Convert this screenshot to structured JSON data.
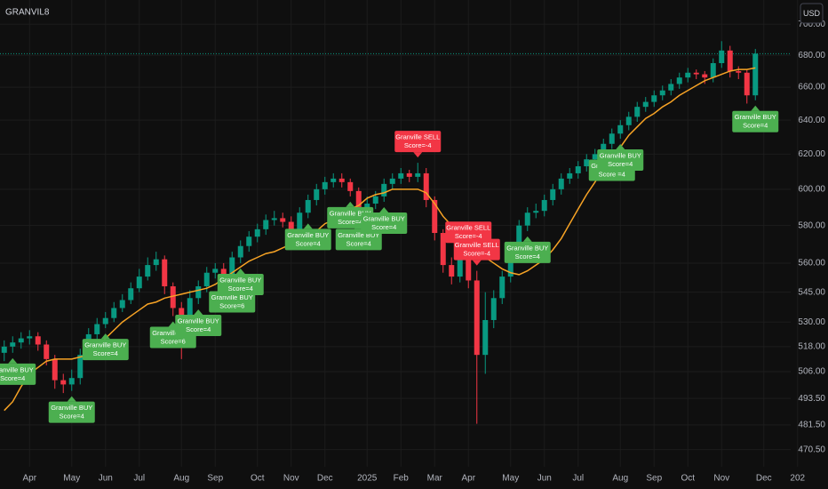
{
  "chart_data": {
    "type": "candlestick",
    "title": "GRANVIL8",
    "currency": "USD",
    "categories": [
      null,
      null,
      null,
      "Apr",
      null,
      null,
      null,
      null,
      "May",
      null,
      null,
      null,
      "Jun",
      null,
      null,
      null,
      "Jul",
      null,
      null,
      null,
      null,
      "Aug",
      null,
      null,
      null,
      "Sep",
      null,
      null,
      null,
      null,
      "Oct",
      null,
      null,
      null,
      "Nov",
      null,
      null,
      null,
      "Dec",
      null,
      null,
      null,
      null,
      "2025",
      null,
      null,
      null,
      "Feb",
      null,
      null,
      null,
      "Mar",
      null,
      null,
      null,
      "Apr",
      null,
      null,
      null,
      null,
      "May",
      null,
      null,
      null,
      "Jun",
      null,
      null,
      null,
      "Jul",
      null,
      null,
      null,
      null,
      "Aug",
      null,
      null,
      null,
      "Sep",
      null,
      null,
      null,
      "Oct",
      null,
      null,
      null,
      "Nov",
      null,
      null,
      null,
      null,
      "Dec",
      null,
      null,
      null,
      "202"
    ],
    "open": [
      515,
      518,
      520,
      522,
      523,
      519,
      512,
      502,
      500,
      503,
      514,
      524,
      529,
      532,
      537,
      541,
      547,
      553,
      559,
      562,
      548,
      537,
      522,
      542,
      548,
      555,
      557,
      553,
      563,
      569,
      574,
      578,
      583,
      584,
      582,
      577,
      587,
      594,
      600,
      604,
      606,
      604,
      599,
      588,
      592,
      596,
      603,
      606,
      609,
      607,
      609,
      594,
      576,
      559,
      553,
      562,
      551,
      514,
      531,
      542,
      553,
      564,
      580,
      587,
      588,
      594,
      600,
      606,
      609,
      613,
      617,
      620,
      626,
      632,
      637,
      642,
      648,
      651,
      655,
      658,
      662,
      666,
      669,
      668,
      666,
      675,
      683,
      670,
      669,
      655,
      null,
      null,
      null,
      null,
      null
    ],
    "high": [
      521,
      523,
      525,
      526,
      525,
      521,
      514,
      505,
      507,
      517,
      527,
      532,
      535,
      540,
      544,
      550,
      557,
      563,
      566,
      564,
      550,
      540,
      546,
      551,
      558,
      560,
      560,
      566,
      572,
      577,
      581,
      586,
      588,
      587,
      585,
      590,
      597,
      603,
      607,
      609,
      609,
      606,
      601,
      596,
      599,
      606,
      609,
      612,
      611,
      615,
      612,
      596,
      578,
      563,
      566,
      565,
      556,
      545,
      546,
      556,
      567,
      583,
      590,
      592,
      597,
      603,
      609,
      612,
      616,
      620,
      623,
      629,
      635,
      640,
      645,
      651,
      654,
      658,
      661,
      665,
      669,
      672,
      671,
      670,
      678,
      689,
      686,
      673,
      671,
      684,
      null,
      null,
      null,
      null,
      null
    ],
    "low": [
      511,
      515,
      517,
      519,
      516,
      509,
      498,
      496,
      497,
      500,
      512,
      521,
      527,
      530,
      535,
      539,
      545,
      551,
      556,
      544,
      533,
      512,
      519,
      539,
      545,
      552,
      549,
      551,
      560,
      566,
      571,
      575,
      580,
      579,
      573,
      574,
      584,
      591,
      597,
      601,
      601,
      596,
      584,
      585,
      589,
      593,
      600,
      603,
      604,
      604,
      590,
      572,
      555,
      549,
      550,
      547,
      482,
      505,
      527,
      539,
      550,
      561,
      577,
      584,
      585,
      591,
      597,
      603,
      606,
      610,
      614,
      617,
      623,
      629,
      634,
      639,
      645,
      648,
      652,
      655,
      659,
      663,
      665,
      662,
      663,
      672,
      666,
      665,
      650,
      652,
      null,
      null,
      null,
      null,
      null
    ],
    "close": [
      518,
      520,
      522,
      523,
      519,
      512,
      502,
      500,
      503,
      514,
      524,
      529,
      532,
      537,
      541,
      547,
      553,
      559,
      562,
      548,
      537,
      522,
      542,
      548,
      555,
      557,
      553,
      563,
      569,
      574,
      578,
      583,
      584,
      582,
      577,
      587,
      594,
      600,
      604,
      606,
      604,
      599,
      588,
      592,
      596,
      603,
      606,
      609,
      607,
      609,
      594,
      576,
      559,
      553,
      562,
      551,
      514,
      531,
      542,
      553,
      564,
      580,
      587,
      588,
      594,
      600,
      606,
      609,
      613,
      617,
      620,
      626,
      632,
      637,
      642,
      648,
      651,
      655,
      658,
      662,
      666,
      669,
      668,
      666,
      675,
      683,
      670,
      669,
      655,
      681,
      null,
      null,
      null,
      null,
      null
    ],
    "up_color": "#089981",
    "down_color": "#f23645",
    "series": [
      {
        "color": "#f7a325",
        "values": [
          488,
          492,
          499,
          505,
          508,
          511,
          512,
          512,
          512,
          513,
          514,
          518,
          522,
          526,
          530,
          533,
          536,
          539,
          540,
          542,
          543,
          544,
          545,
          546,
          547,
          549,
          552,
          555,
          558,
          561,
          563,
          565,
          566,
          568,
          570,
          572,
          574,
          577,
          581,
          583,
          586,
          589,
          591,
          595,
          597,
          598,
          600,
          600,
          600,
          600,
          598,
          592,
          585,
          580,
          574,
          570,
          566,
          563,
          560,
          557,
          555,
          554,
          556,
          559,
          562,
          567,
          573,
          581,
          589,
          597,
          604,
          612,
          618,
          624,
          631,
          636,
          641,
          644,
          648,
          651,
          655,
          658,
          661,
          664,
          666,
          668,
          670,
          671,
          671,
          672,
          null,
          null,
          null,
          null,
          null
        ]
      }
    ],
    "ylim": [
      463,
      716
    ],
    "log_scale": true,
    "grid": true,
    "yticks": [
      {
        "value": 700,
        "label": "700.00"
      },
      {
        "value": 680,
        "label": "680.00"
      },
      {
        "value": 660,
        "label": "660.00"
      },
      {
        "value": 640,
        "label": "640.00"
      },
      {
        "value": 620,
        "label": "620.00"
      },
      {
        "value": 600,
        "label": "600.00"
      },
      {
        "value": 580,
        "label": "580.00"
      },
      {
        "value": 560,
        "label": "560.00"
      },
      {
        "value": 545,
        "label": "545.00"
      },
      {
        "value": 530,
        "label": "530.00"
      },
      {
        "value": 518,
        "label": "518.00"
      },
      {
        "value": 506,
        "label": "506.00"
      },
      {
        "value": 493.5,
        "label": "493.50"
      },
      {
        "value": 481.5,
        "label": "481.50"
      },
      {
        "value": 470.5,
        "label": "470.50"
      }
    ],
    "buy_color": "#4caf50",
    "sell_color": "#f23645",
    "annotations": [
      {
        "candle": 1,
        "side": "buy",
        "label": "Granville BUY",
        "score": "Score=4"
      },
      {
        "candle": 8,
        "side": "buy",
        "label": "Granville BUY",
        "score": "Score=4"
      },
      {
        "candle": 12,
        "side": "buy",
        "label": "Granville BUY",
        "score": "Score=4"
      },
      {
        "candle": 20,
        "side": "buy",
        "label": "Granville BUY",
        "score": "Score=6"
      },
      {
        "candle": 23,
        "side": "buy",
        "label": "Granville BUY",
        "score": "Score=4"
      },
      {
        "candle": 27,
        "side": "buy",
        "label": "Granville BUY",
        "score": "Score=6"
      },
      {
        "candle": 28,
        "side": "buy",
        "label": "Granville BUY",
        "score": "Score=4"
      },
      {
        "candle": 36,
        "side": "buy",
        "label": "Granville BUY",
        "score": "Score=4"
      },
      {
        "candle": 41,
        "side": "buy",
        "label": "Granville BUY",
        "score": "Score=4"
      },
      {
        "candle": 42,
        "side": "buy",
        "label": "Granville BUY",
        "score": "Score=4"
      },
      {
        "candle": 45,
        "side": "buy",
        "label": "Granville BUY",
        "score": "Score=4"
      },
      {
        "candle": 49,
        "side": "sell",
        "label": "Granville SELL",
        "score": "Score=-4"
      },
      {
        "candle": 55,
        "side": "sell",
        "label": "Granville SELL",
        "score": "Score=-4"
      },
      {
        "candle": 56,
        "side": "sell",
        "label": "Granville SELL",
        "score": "Score=-4"
      },
      {
        "candle": 62,
        "side": "buy",
        "label": "Granville BUY",
        "score": "Score=4"
      },
      {
        "candle": 72,
        "side": "buy",
        "label": "Granville BUY",
        "score": "Score =4"
      },
      {
        "candle": 73,
        "side": "buy",
        "label": "Granville BUY",
        "score": "Score=4"
      },
      {
        "candle": 89,
        "side": "buy",
        "label": "Granville BUY",
        "score": "Score=4"
      }
    ]
  }
}
